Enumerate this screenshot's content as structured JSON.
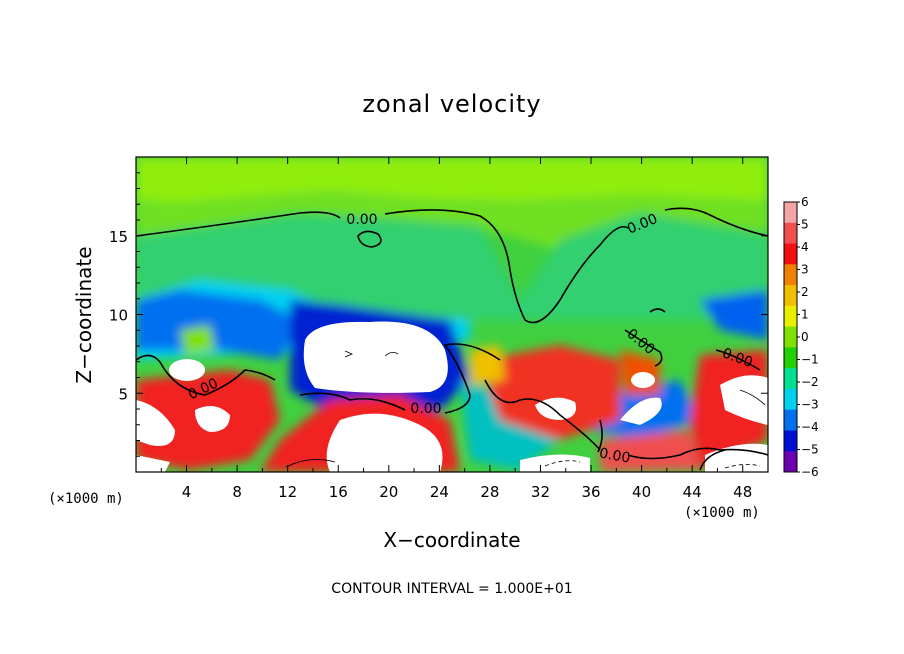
{
  "chart_data": {
    "type": "heatmap",
    "title": "zonal velocity",
    "xlabel": "X−coordinate",
    "ylabel": "Z−coordinate",
    "x_unit_left": "(×1000 m)",
    "x_unit_right": "(×1000 m)",
    "xlim": [
      0,
      50
    ],
    "ylim": [
      0,
      20
    ],
    "x_ticks": [
      4,
      8,
      12,
      16,
      20,
      24,
      28,
      32,
      36,
      40,
      44,
      48
    ],
    "y_ticks": [
      5,
      10,
      15
    ],
    "colorbar": {
      "ticks": [
        6,
        5,
        4,
        3,
        2,
        1,
        0,
        -1,
        -2,
        -3,
        -4,
        -5,
        -6
      ],
      "tick_labels": [
        "6",
        "5",
        "4",
        "3",
        "2",
        "1",
        "0",
        "−1",
        "−2",
        "−3",
        "−4",
        "−5",
        "−6"
      ],
      "colors": [
        "#f4a6a6",
        "#f05050",
        "#f01010",
        "#f08000",
        "#f0c000",
        "#e8f000",
        "#80e000",
        "#20d000",
        "#00e090",
        "#00d0f0",
        "#0070f0",
        "#0010d0",
        "#6a00b0"
      ]
    },
    "contour_labels": [
      "0.00",
      "0.00",
      "0.00",
      "0.00",
      "0.00",
      "0.00",
      "0.00"
    ],
    "footer": "CONTOUR INTERVAL = 1.000E+01"
  }
}
